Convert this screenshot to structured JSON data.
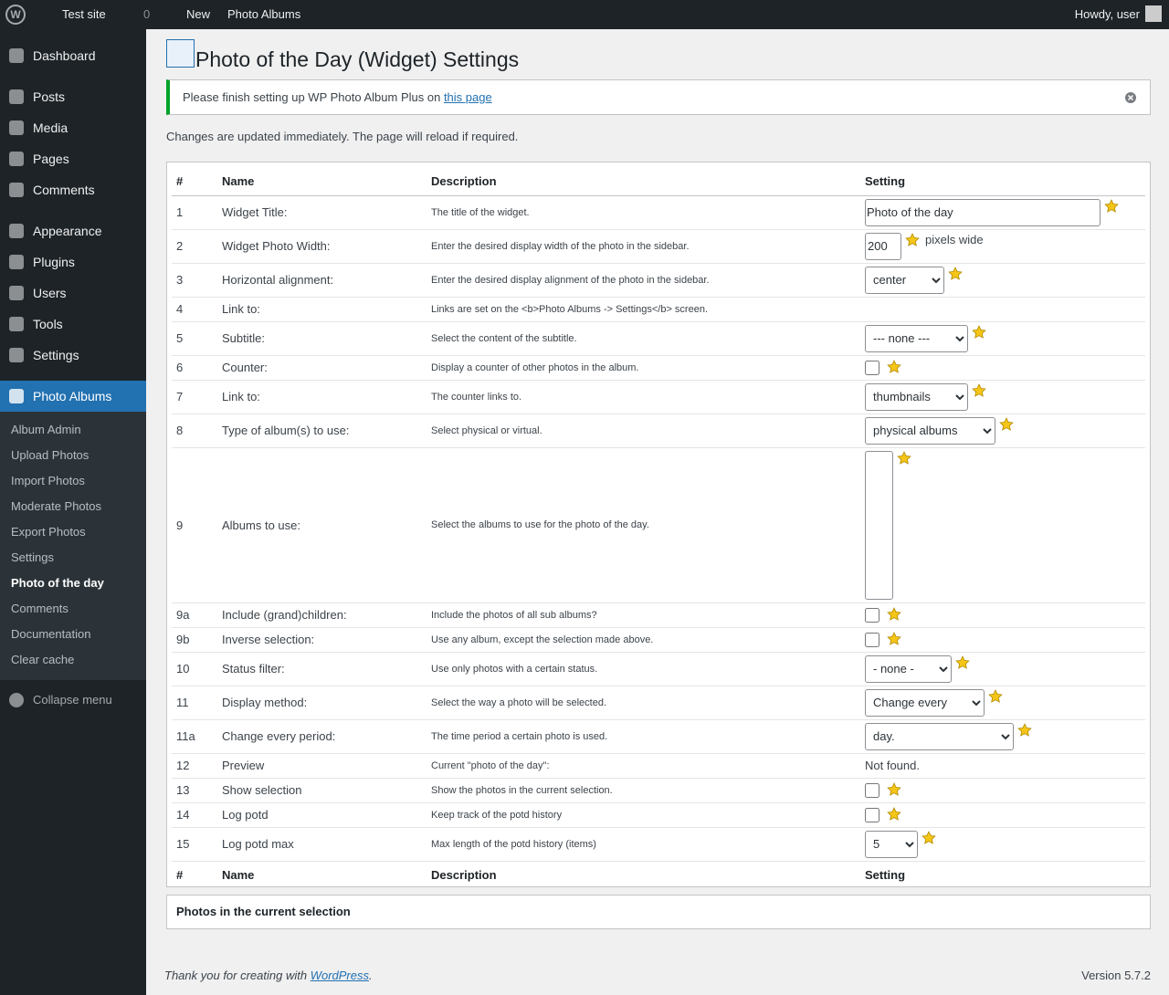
{
  "admin_bar": {
    "site": "Test site",
    "comments": "0",
    "new": "New",
    "plugin": "Photo Albums",
    "howdy": "Howdy, user"
  },
  "menu": {
    "groups": [
      [
        "Dashboard"
      ],
      [
        "Posts",
        "Media",
        "Pages",
        "Comments"
      ],
      [
        "Appearance",
        "Plugins",
        "Users",
        "Tools",
        "Settings"
      ]
    ],
    "active": "Photo Albums",
    "submenu": [
      "Album Admin",
      "Upload Photos",
      "Import Photos",
      "Moderate Photos",
      "Export Photos",
      "Settings",
      "Photo of the day",
      "Comments",
      "Documentation",
      "Clear cache"
    ],
    "collapse": "Collapse menu"
  },
  "header": {
    "title": "Photo of the Day (Widget) Settings"
  },
  "notice": {
    "text": "Please finish setting up WP Photo Album Plus on",
    "link": "this page"
  },
  "info": "Changes are updated immediately. The page will reload if required.",
  "table": {
    "headers": [
      "#",
      "Name",
      "Description",
      "Setting"
    ],
    "rows": [
      {
        "num": "1",
        "name": "Widget Title:",
        "desc": "The title of the widget.",
        "control": {
          "kind": "text",
          "value": "Photo of the day"
        }
      },
      {
        "num": "2",
        "name": "Widget Photo Width:",
        "desc": "Enter the desired display width of the photo in the sidebar.",
        "control": {
          "kind": "number",
          "value": "200",
          "suffix": "pixels wide"
        }
      },
      {
        "num": "3",
        "name": "Horizontal alignment:",
        "desc": "Enter the desired display alignment of the photo in the sidebar.",
        "control": {
          "kind": "select",
          "value": "center"
        }
      },
      {
        "num": "4",
        "name": "Link to:",
        "desc": "Links are set on the <b>Photo Albums -> Settings</b> screen."
      },
      {
        "num": "5",
        "name": "Subtitle:",
        "desc": "Select the content of the subtitle.",
        "control": {
          "kind": "select",
          "value": "--- none ---"
        }
      },
      {
        "num": "6",
        "name": "Counter:",
        "desc": "Display a counter of other photos in the album.",
        "control": {
          "kind": "checkbox"
        }
      },
      {
        "num": "7",
        "name": "Link to:",
        "desc": "The counter links to.",
        "control": {
          "kind": "select",
          "value": "thumbnails"
        }
      },
      {
        "num": "8",
        "name": "Type of album(s) to use:",
        "desc": "Select physical or virtual.",
        "control": {
          "kind": "select",
          "value": "physical albums"
        }
      },
      {
        "num": "9",
        "name": "Albums to use:",
        "desc": "Select the albums to use for the photo of the day.",
        "control": {
          "kind": "listbox"
        }
      },
      {
        "num": "9a",
        "name": "Include (grand)children:",
        "desc": "Include the photos of all sub albums?",
        "control": {
          "kind": "checkbox"
        }
      },
      {
        "num": "9b",
        "name": "Inverse selection:",
        "desc": "Use any album, except the selection made above.",
        "control": {
          "kind": "checkbox"
        }
      },
      {
        "num": "10",
        "name": "Status filter:",
        "desc": "Use only photos with a certain status.",
        "control": {
          "kind": "select",
          "value": "- none -"
        }
      },
      {
        "num": "11",
        "name": "Display method:",
        "desc": "Select the way a photo will be selected.",
        "control": {
          "kind": "select",
          "value": "Change every"
        }
      },
      {
        "num": "11a",
        "name": "Change every period:",
        "desc": "The time period a certain photo is used.",
        "control": {
          "kind": "select-wide",
          "value": "day."
        }
      },
      {
        "num": "12",
        "name": "Preview",
        "desc": "Current \"photo of the day\":",
        "control": {
          "kind": "plain",
          "value": "Not found."
        }
      },
      {
        "num": "13",
        "name": "Show selection",
        "desc": "Show the photos in the current selection.",
        "control": {
          "kind": "checkbox"
        }
      },
      {
        "num": "14",
        "name": "Log potd",
        "desc": "Keep track of the potd history",
        "control": {
          "kind": "checkbox"
        }
      },
      {
        "num": "15",
        "name": "Log potd max",
        "desc": "Max length of the potd history (items)",
        "control": {
          "kind": "select",
          "value": "5"
        }
      }
    ]
  },
  "selection": {
    "title": "Photos in the current selection"
  },
  "footer": {
    "thanks": "Thank you for creating with",
    "link": "WordPress",
    "version": "Version 5.7.2"
  }
}
